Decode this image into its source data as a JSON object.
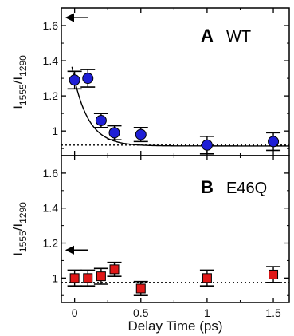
{
  "chart_data": [
    {
      "type": "scatter",
      "panel": "A",
      "title": "WT",
      "xlabel": "Delay Time (ps)",
      "ylabel_base": "I",
      "ylabel_sub1": "1555",
      "ylabel_sep": "/I",
      "ylabel_sub2": "1290",
      "xlim": [
        -0.1,
        1.62
      ],
      "ylim": [
        0.86,
        1.7
      ],
      "xticks": [
        0,
        0.5,
        1,
        1.5
      ],
      "xtick_labels": [
        "0",
        "0.5",
        "1",
        "1.5"
      ],
      "yticks": [
        1.0,
        1.2,
        1.4,
        1.6
      ],
      "ytick_labels": [
        "1",
        "1.2",
        "1.4",
        "1.6"
      ],
      "marker": "circle",
      "marker_color": "#1f1fd6",
      "x": [
        0,
        0.1,
        0.2,
        0.3,
        0.5,
        1.0,
        1.5
      ],
      "y": [
        1.29,
        1.3,
        1.06,
        0.99,
        0.98,
        0.92,
        0.94
      ],
      "yerr": [
        0.05,
        0.05,
        0.04,
        0.04,
        0.04,
        0.05,
        0.05
      ],
      "fit_curve": {
        "x0": -0.02,
        "baseline": 0.915,
        "amplitude": 0.45,
        "tau": 0.115
      },
      "baseline_dotted": 0.92,
      "arrow_y": 1.645
    },
    {
      "type": "scatter",
      "panel": "B",
      "title": "E46Q",
      "xlabel": "Delay Time (ps)",
      "ylabel_base": "I",
      "ylabel_sub1": "1555",
      "ylabel_sep": "/I",
      "ylabel_sub2": "1290",
      "xlim": [
        -0.1,
        1.62
      ],
      "ylim": [
        0.86,
        1.7
      ],
      "xticks": [
        0,
        0.5,
        1,
        1.5
      ],
      "xtick_labels": [
        "0",
        "0.5",
        "1",
        "1.5"
      ],
      "yticks": [
        1.0,
        1.2,
        1.4,
        1.6
      ],
      "ytick_labels": [
        "1",
        "1.2",
        "1.4",
        "1.6"
      ],
      "marker": "square",
      "marker_color": "#e01818",
      "x": [
        0,
        0.1,
        0.2,
        0.3,
        0.5,
        1.0,
        1.5
      ],
      "y": [
        1.0,
        1.0,
        1.01,
        1.05,
        0.94,
        1.0,
        1.02
      ],
      "yerr": [
        0.045,
        0.045,
        0.045,
        0.04,
        0.04,
        0.045,
        0.045
      ],
      "baseline_dotted": 0.975,
      "arrow_y": 1.16
    }
  ]
}
